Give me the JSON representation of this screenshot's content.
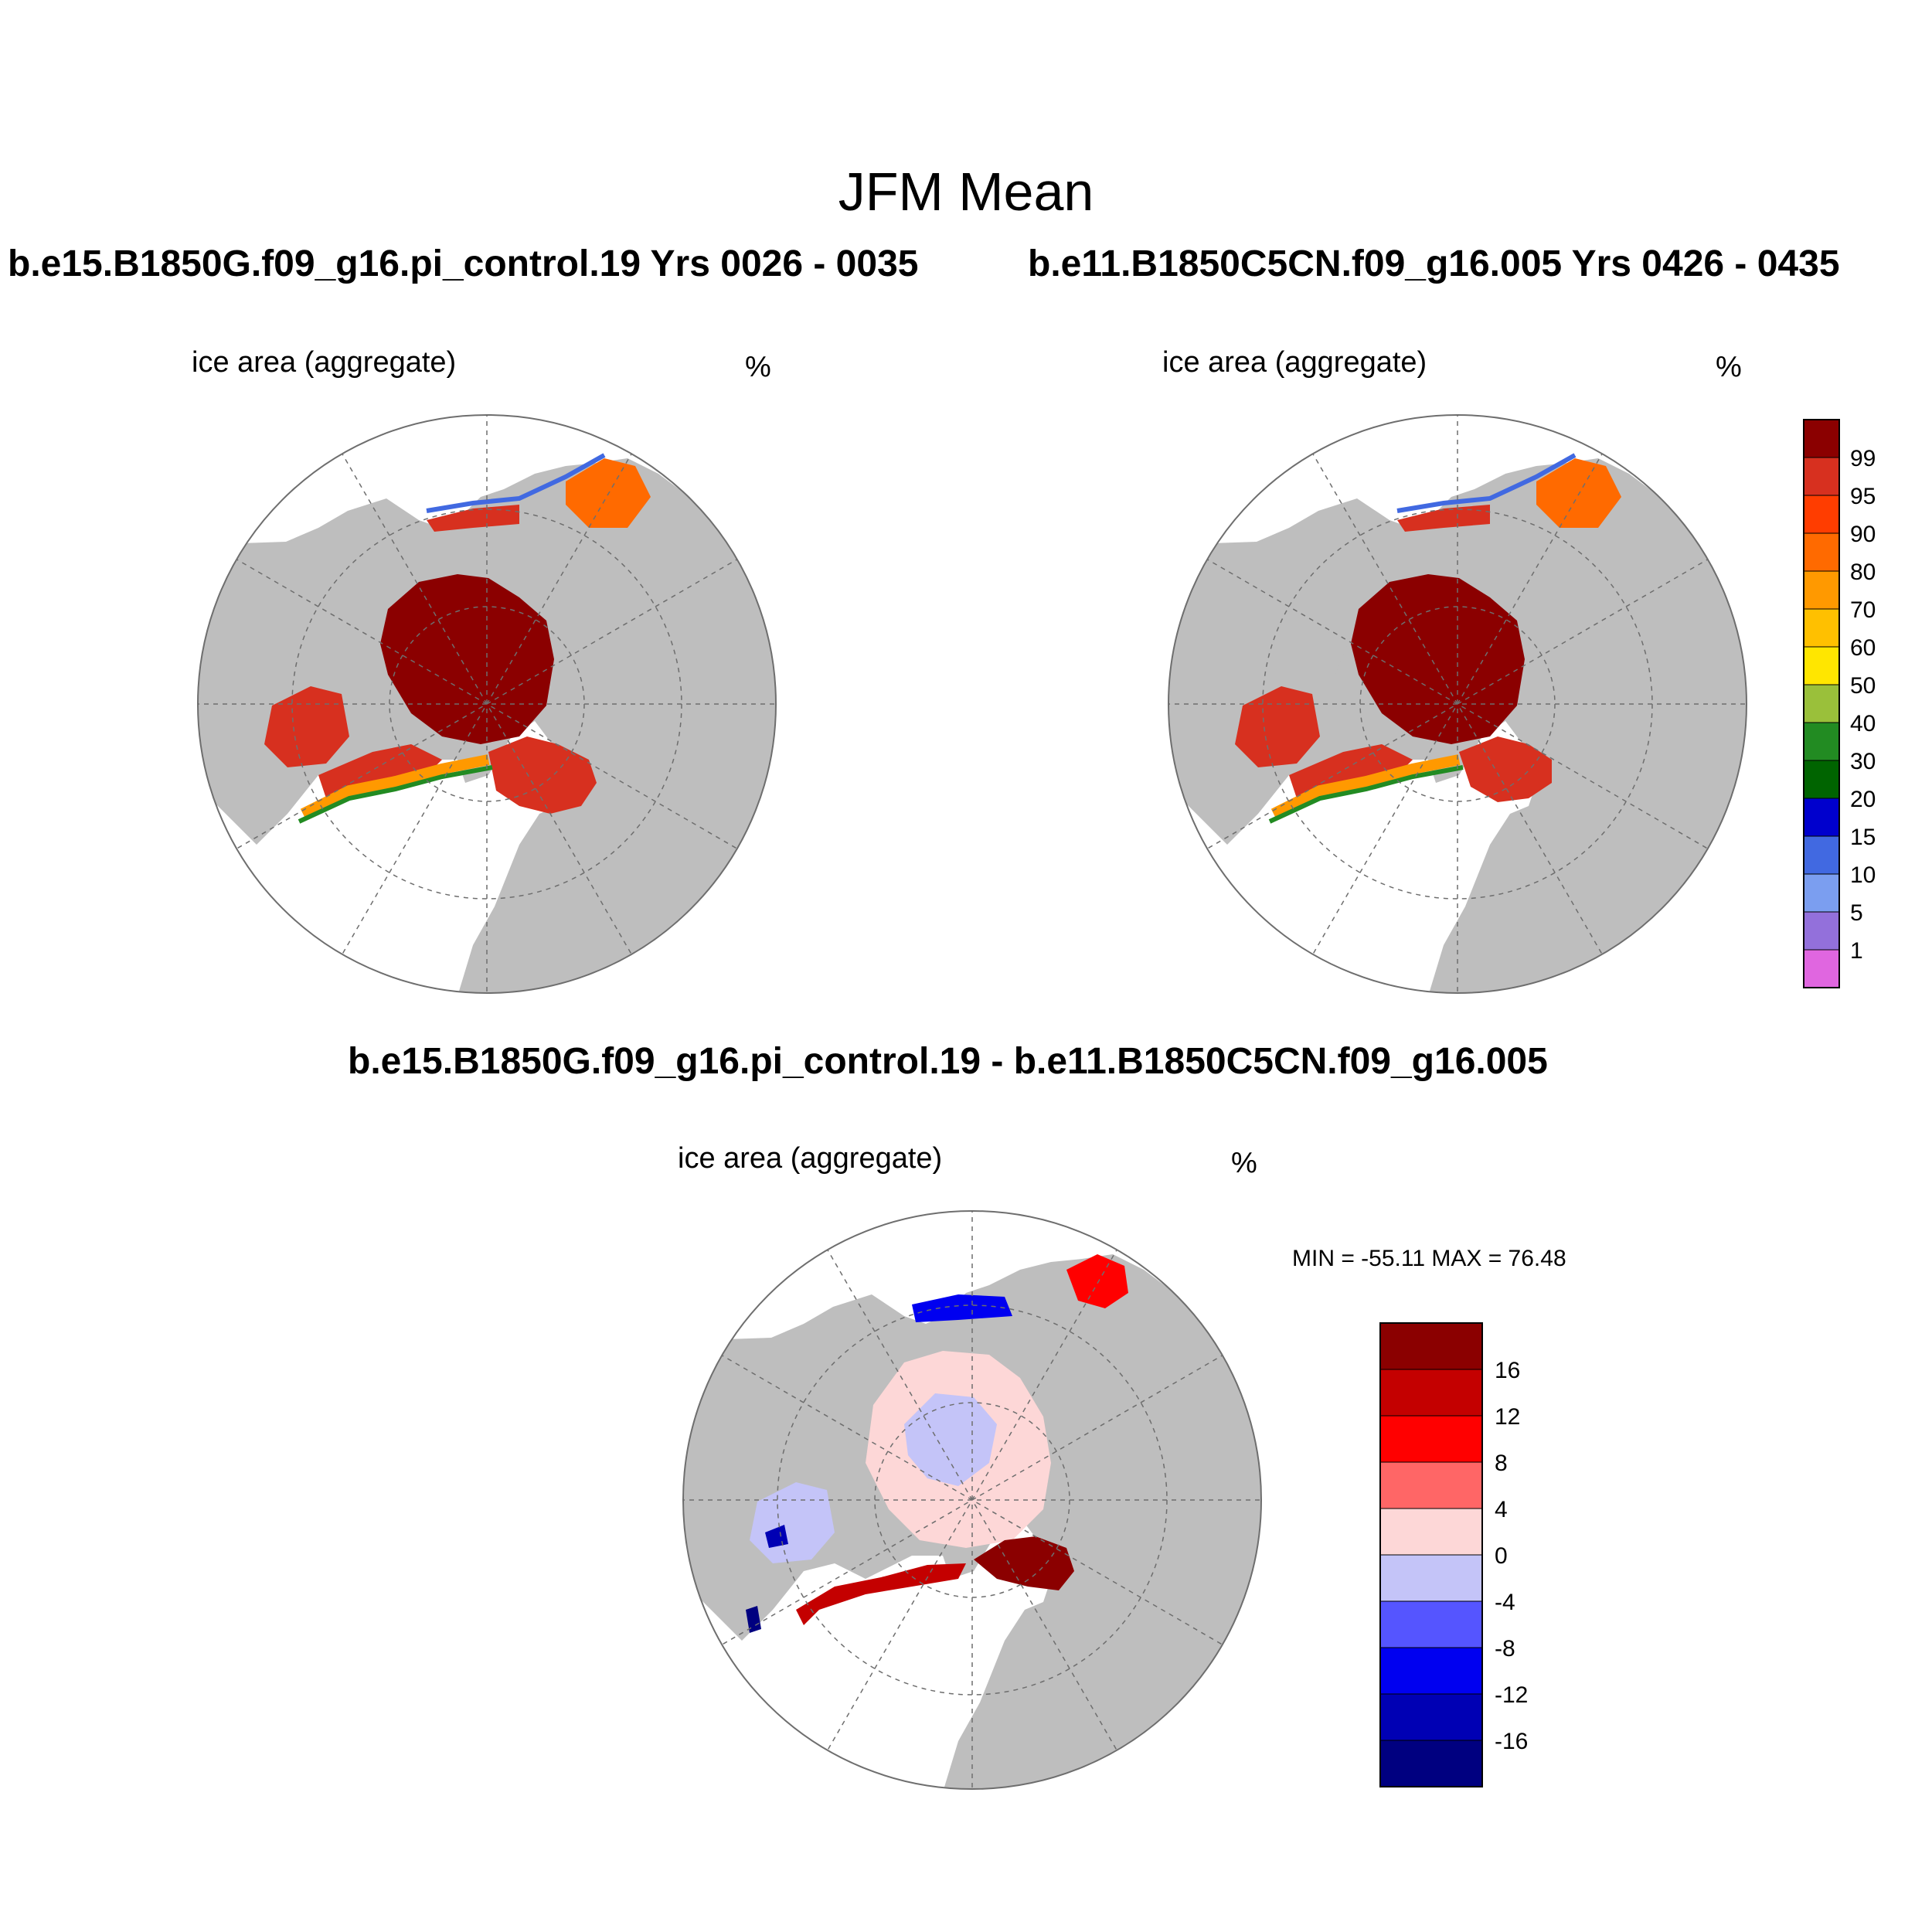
{
  "title": "JFM Mean",
  "panels": [
    {
      "id": "left",
      "case_title": "b.e15.B1850G.f09_g16.pi_control.19  Yrs 0026 - 0035",
      "variable_label": "ice area  (aggregate)",
      "units": "%"
    },
    {
      "id": "right",
      "case_title": "b.e11.B1850C5CN.f09_g16.005  Yrs 0426 - 0435",
      "variable_label": "ice area  (aggregate)",
      "units": "%"
    },
    {
      "id": "diff",
      "case_title": "b.e15.B1850G.f09_g16.pi_control.19 - b.e11.B1850C5CN.f09_g16.005",
      "variable_label": "ice area  (aggregate)",
      "units": "%",
      "min_max": "MIN = -55.11 MAX =  76.48"
    }
  ],
  "colorbars": {
    "concentration": {
      "labels": [
        "99",
        "95",
        "90",
        "80",
        "70",
        "60",
        "50",
        "40",
        "30",
        "20",
        "15",
        "10",
        "5",
        "1"
      ],
      "colors": [
        "#8b0000",
        "#d7301f",
        "#ff3d00",
        "#ff6a00",
        "#ff9900",
        "#ffc000",
        "#ffe600",
        "#9ac03a",
        "#228b22",
        "#006400",
        "#0000cd",
        "#4169e1",
        "#7b9ef0",
        "#9370db",
        "#e066e0"
      ]
    },
    "difference": {
      "labels": [
        "16",
        "12",
        "8",
        "4",
        "0",
        "-4",
        "-8",
        "-12",
        "-16"
      ],
      "colors": [
        "#8b0000",
        "#c40000",
        "#ff0000",
        "#ff6666",
        "#fdd7d7",
        "#c4c4f8",
        "#5555ff",
        "#0000f0",
        "#0000b4",
        "#000080"
      ]
    }
  },
  "map_colors": {
    "land": "#bebebe",
    "ocean": "#ffffff",
    "grid": "#6e6e6e"
  }
}
